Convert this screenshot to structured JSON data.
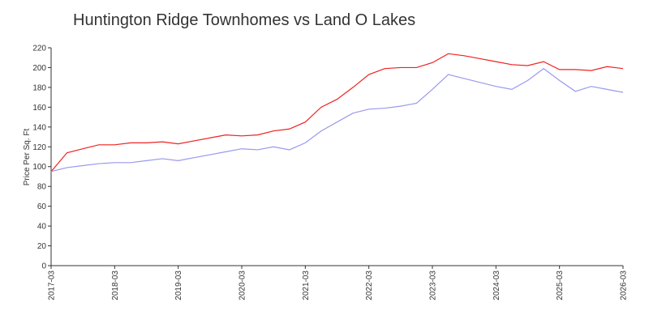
{
  "chart_data": {
    "type": "line",
    "title": "Huntington Ridge Townhomes vs Land O Lakes",
    "y_label": "Price Per Sq. Ft",
    "x": [
      "2017-03",
      "2017-06",
      "2017-09",
      "2017-12",
      "2018-03",
      "2018-06",
      "2018-09",
      "2018-12",
      "2019-03",
      "2019-06",
      "2019-09",
      "2019-12",
      "2020-03",
      "2020-06",
      "2020-09",
      "2020-12",
      "2021-03",
      "2021-06",
      "2021-09",
      "2021-12",
      "2022-03",
      "2022-06",
      "2022-09",
      "2022-12",
      "2023-03",
      "2023-06",
      "2023-09",
      "2023-12",
      "2024-03",
      "2024-06",
      "2024-09",
      "2024-12",
      "2025-03",
      "2025-06",
      "2025-09",
      "2025-12",
      "2026-03"
    ],
    "series": [
      {
        "color": "#ee2222",
        "values": [
          95,
          114,
          118,
          122,
          122,
          124,
          124,
          125,
          123,
          126,
          129,
          132,
          131,
          132,
          136,
          138,
          145,
          160,
          168,
          180,
          193,
          199,
          200,
          200,
          205,
          214,
          212,
          209,
          206,
          203,
          202,
          206,
          198,
          198,
          197,
          201,
          199
        ]
      },
      {
        "color": "#9999ee",
        "values": [
          95,
          99,
          101,
          103,
          104,
          104,
          106,
          108,
          106,
          109,
          112,
          115,
          118,
          117,
          120,
          117,
          124,
          136,
          145,
          154,
          158,
          159,
          161,
          164,
          178,
          193,
          189,
          185,
          181,
          178,
          187,
          199,
          187,
          176,
          181,
          178,
          175
        ]
      }
    ],
    "xlim": [
      "2017-03",
      "2026-03"
    ],
    "xticks": [
      "2017-03",
      "2018-03",
      "2019-03",
      "2020-03",
      "2021-03",
      "2022-03",
      "2023-03",
      "2024-03",
      "2025-03",
      "2026-03"
    ],
    "ylim": [
      0,
      220
    ],
    "yticks": [
      0,
      20,
      40,
      60,
      80,
      100,
      120,
      140,
      160,
      180,
      200,
      220
    ]
  }
}
